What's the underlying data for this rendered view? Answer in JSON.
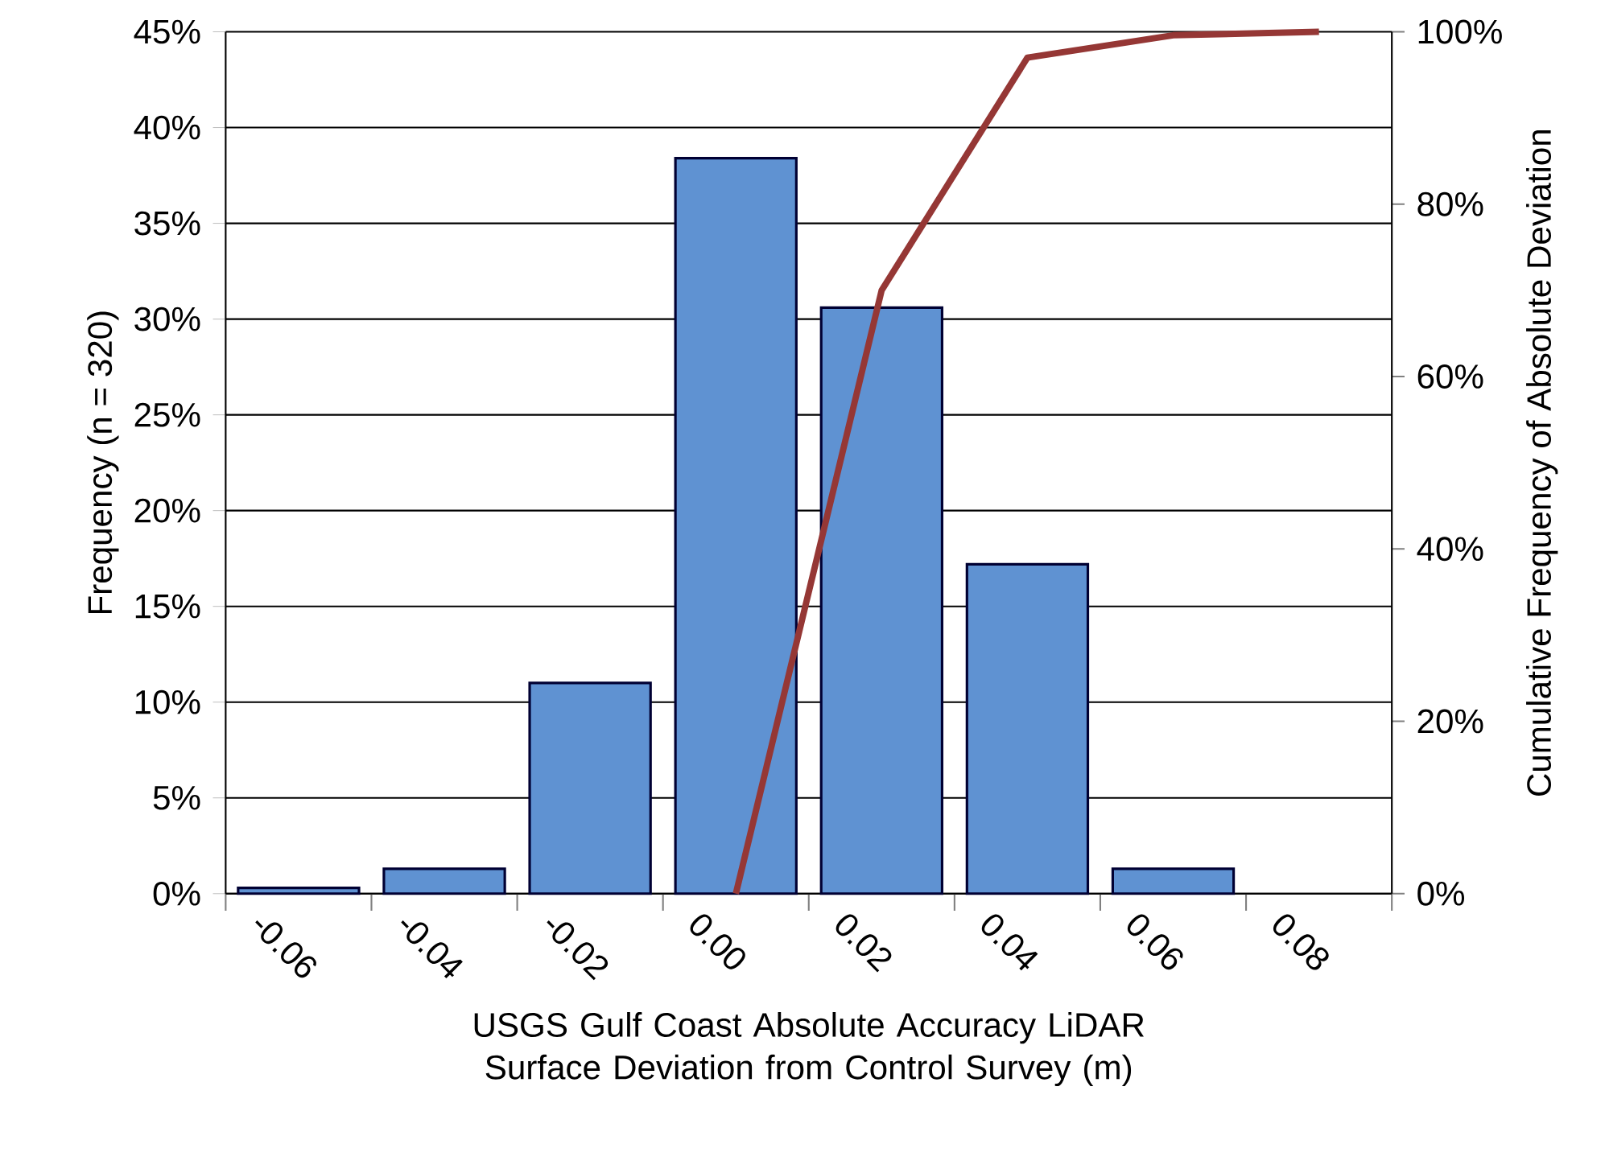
{
  "chart_data": {
    "type": "bar",
    "xlabel": "USGS Gulf Coast Absolute Accuracy LiDAR Surface Deviation from Control Survey (m)",
    "ylabel": "Frequency (n = 320)",
    "y2label": "Cumulative Frequency of Absolute Deviation",
    "categories": [
      "-0.06",
      "-0.04",
      "-0.02",
      "0.00",
      "0.02",
      "0.04",
      "0.06",
      "0.08"
    ],
    "series": [
      {
        "color": "#5f92d2",
        "values": [
          0.3,
          1.3,
          11,
          38.4,
          30.6,
          17.2,
          1.3,
          null
        ]
      },
      {
        "type": "line",
        "axis": "y2",
        "color": "#953735",
        "values": [
          null,
          null,
          null,
          0,
          70,
          97,
          99.6,
          100
        ]
      }
    ],
    "ylim": [
      0,
      45
    ],
    "yticks": [
      {
        "value": 0,
        "label": "0%"
      },
      {
        "value": 5,
        "label": "5%"
      },
      {
        "value": 10,
        "label": "10%"
      },
      {
        "value": 15,
        "label": "15%"
      },
      {
        "value": 20,
        "label": "20%"
      },
      {
        "value": 25,
        "label": "25%"
      },
      {
        "value": 30,
        "label": "30%"
      },
      {
        "value": 35,
        "label": "35%"
      },
      {
        "value": 40,
        "label": "40%"
      },
      {
        "value": 45,
        "label": "45%"
      }
    ],
    "y2lim": [
      0,
      100
    ],
    "y2ticks": [
      {
        "value": 0,
        "label": "0%"
      },
      {
        "value": 20,
        "label": "20%"
      },
      {
        "value": 40,
        "label": "40%"
      },
      {
        "value": 60,
        "label": "60%"
      },
      {
        "value": 80,
        "label": "80%"
      },
      {
        "value": 100,
        "label": "100%"
      }
    ],
    "grid": "y"
  }
}
